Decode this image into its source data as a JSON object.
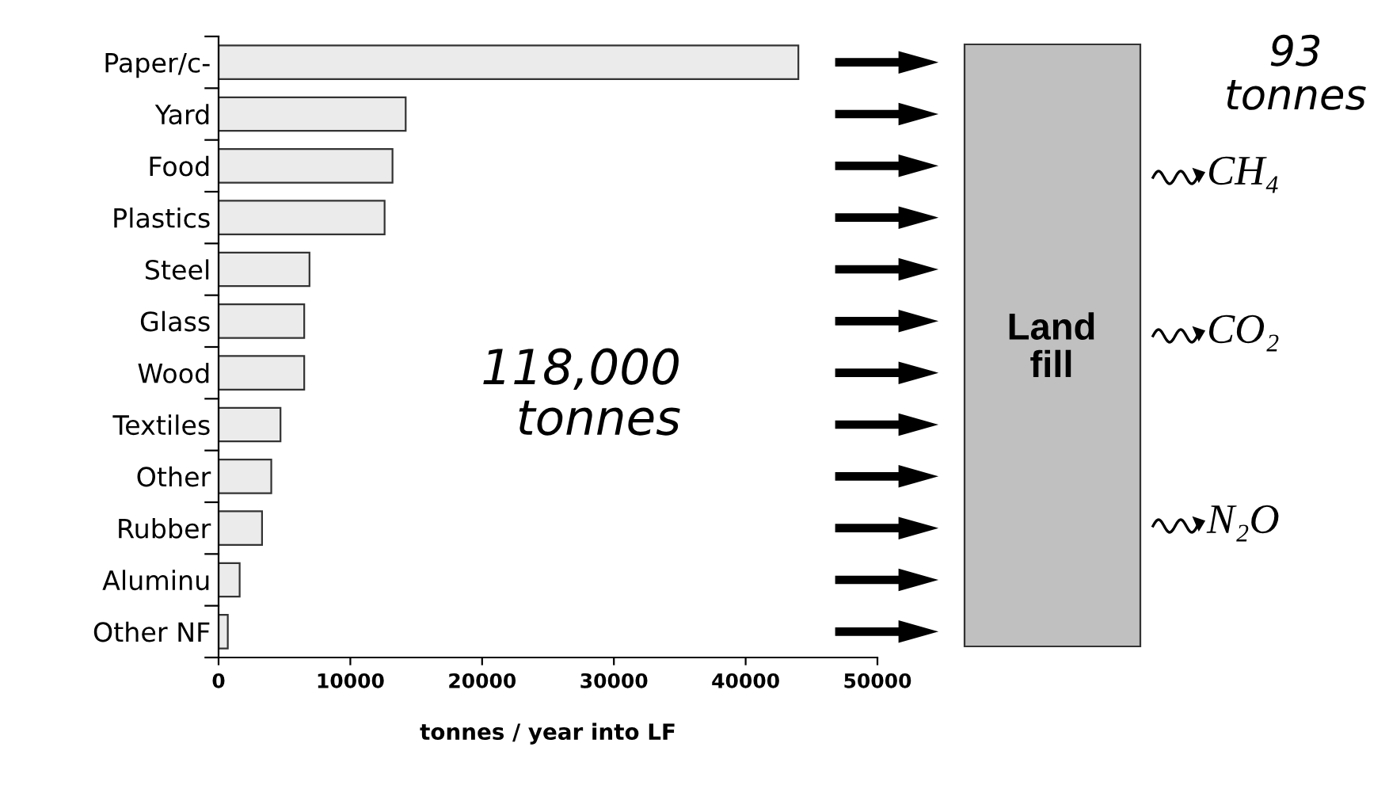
{
  "chart_data": {
    "type": "bar",
    "orientation": "horizontal",
    "xlabel": "tonnes / year into LF",
    "categories": [
      "Paper/c-",
      "Yard",
      "Food",
      "Plastics",
      "Steel",
      "Glass",
      "Wood",
      "Textiles",
      "Other",
      "Rubber",
      "Aluminu",
      "Other NF"
    ],
    "values": [
      44000,
      14200,
      13200,
      12600,
      6900,
      6500,
      6500,
      4700,
      4000,
      3300,
      1600,
      700
    ],
    "color": "#ebebeb",
    "xlim": [
      0,
      50000
    ],
    "xticks": [
      0,
      10000,
      20000,
      30000,
      40000,
      50000
    ],
    "grid": false,
    "annotations": [
      "118,000\ntonnes",
      "Land\nfill",
      "93\ntonnes",
      "CH₄",
      "CO₂",
      "N₂O"
    ]
  }
}
